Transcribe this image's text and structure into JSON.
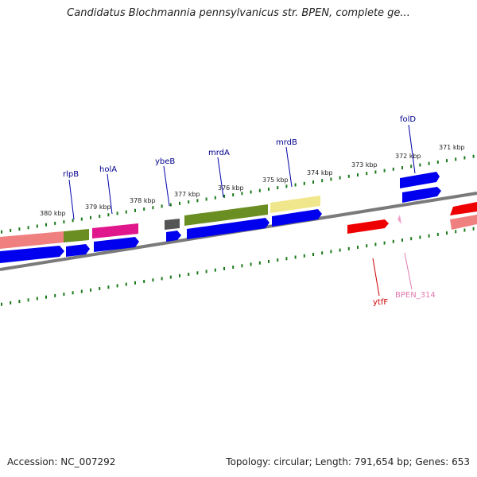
{
  "title": "Candidatus Blochmannia pennsylvanicus str. BPEN, complete ge...",
  "footer": {
    "accession": "Accession: NC_007292",
    "summary": "Topology: circular; Length: 791,654 bp; Genes: 653"
  },
  "scale_labels": [
    "380 kbp",
    "379 kbp",
    "378 kbp",
    "377 kbp",
    "376 kbp",
    "375 kbp",
    "374 kbp",
    "373 kbp",
    "372 kbp",
    "371 kbp"
  ],
  "gene_labels": {
    "rlpB": "rlpB",
    "holA": "holA",
    "ybeB": "ybeB",
    "mrdA": "mrdA",
    "mrdB": "mrdB",
    "folD": "folD",
    "ytfF": "ytfF",
    "bpen314": "BPEN_314"
  },
  "colors": {
    "backbone": "#808080",
    "cds": "#0000ee",
    "salmon": "#f08080",
    "olive": "#6b8e23",
    "magenta": "#e0168c",
    "khaki": "#f0e68c",
    "dark_gray": "#555555",
    "red": "#ee0000",
    "pink": "#f0a0c8",
    "ticks": "#1a7a1a"
  }
}
